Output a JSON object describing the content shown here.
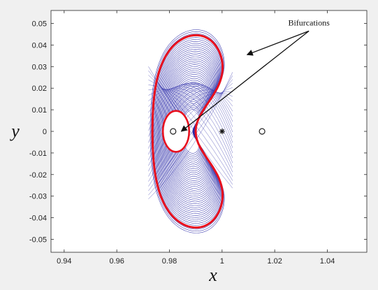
{
  "chart_data": {
    "type": "line",
    "title": "",
    "xlabel": "x",
    "ylabel": "y",
    "xlim": [
      0.935,
      1.055
    ],
    "ylim": [
      -0.056,
      0.056
    ],
    "xticks": [
      0.94,
      0.96,
      0.98,
      1,
      1.02,
      1.04
    ],
    "xtick_labels": [
      "0.94",
      "0.96",
      "0.98",
      "1",
      "1.02",
      "1.04"
    ],
    "yticks": [
      -0.05,
      -0.04,
      -0.03,
      -0.02,
      -0.01,
      0,
      0.01,
      0.02,
      0.03,
      0.04,
      0.05
    ],
    "ytick_labels": [
      "-0.05",
      "-0.04",
      "-0.03",
      "-0.02",
      "-0.01",
      "0",
      "0.01",
      "0.02",
      "0.03",
      "0.04",
      "0.05"
    ],
    "grid": false,
    "colors": {
      "orbits": "#2b2ba8",
      "bifurcation": "#e8101e",
      "background": "#f0f0f0",
      "axes": "#ffffff"
    },
    "annotation": {
      "text": "Bifurcations",
      "text_at": [
        1.033,
        0.0465
      ],
      "arrows_to": [
        [
          1.0095,
          0.0355
        ],
        [
          0.9845,
          0.0
        ]
      ]
    },
    "markers": [
      {
        "symbol": "circle",
        "x": 0.9814,
        "y": 0.0
      },
      {
        "symbol": "asterisk",
        "x": 1.0,
        "y": 0.0
      },
      {
        "symbol": "circle",
        "x": 1.0152,
        "y": 0.0
      }
    ]
  }
}
